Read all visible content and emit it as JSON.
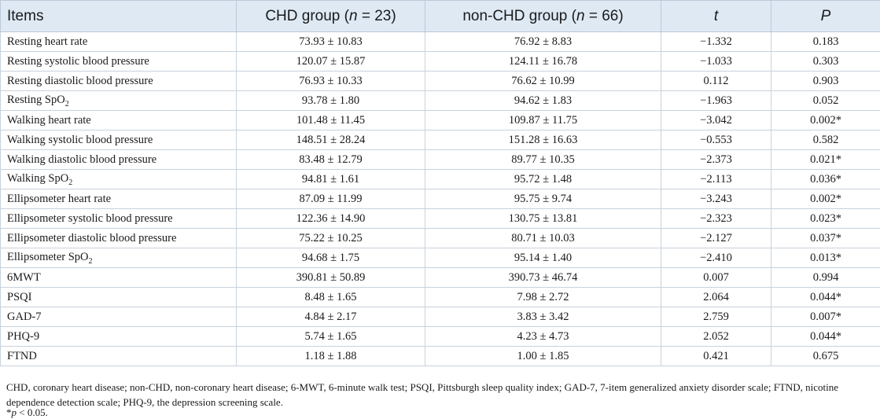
{
  "table": {
    "headers": {
      "items": "Items",
      "chd_prefix": "CHD group (",
      "chd_n": "n",
      "chd_suffix": " = 23)",
      "nonchd_prefix": "non-CHD group (",
      "nonchd_n": "n",
      "nonchd_suffix": " = 66)",
      "t": "t",
      "p": "P"
    },
    "rows": [
      {
        "item": "Resting heart rate",
        "chd": "73.93 ± 10.83",
        "nonchd": "76.92 ± 8.83",
        "t": "−1.332",
        "p": "0.183"
      },
      {
        "item": "Resting systolic blood pressure",
        "chd": "120.07 ± 15.87",
        "nonchd": "124.11 ± 16.78",
        "t": "−1.033",
        "p": "0.303"
      },
      {
        "item": "Resting diastolic blood pressure",
        "chd": "76.93 ± 10.33",
        "nonchd": "76.62 ± 10.99",
        "t": "0.112",
        "p": "0.903"
      },
      {
        "item": "Resting SpO",
        "sub": "2",
        "chd": "93.78 ± 1.80",
        "nonchd": "94.62 ± 1.83",
        "t": "−1.963",
        "p": "0.052"
      },
      {
        "item": "Walking heart rate",
        "chd": "101.48 ± 11.45",
        "nonchd": "109.87 ± 11.75",
        "t": "−3.042",
        "p": "0.002*"
      },
      {
        "item": "Walking systolic blood pressure",
        "chd": "148.51 ± 28.24",
        "nonchd": "151.28 ± 16.63",
        "t": "−0.553",
        "p": "0.582"
      },
      {
        "item": "Walking diastolic blood pressure",
        "chd": "83.48 ± 12.79",
        "nonchd": "89.77 ± 10.35",
        "t": "−2.373",
        "p": "0.021*"
      },
      {
        "item": "Walking SpO",
        "sub": "2",
        "chd": "94.81 ± 1.61",
        "nonchd": "95.72 ± 1.48",
        "t": "−2.113",
        "p": "0.036*"
      },
      {
        "item": "Ellipsometer heart rate",
        "chd": "87.09 ± 11.99",
        "nonchd": "95.75 ± 9.74",
        "t": "−3.243",
        "p": "0.002*"
      },
      {
        "item": "Ellipsometer systolic blood pressure",
        "chd": "122.36 ± 14.90",
        "nonchd": "130.75 ± 13.81",
        "t": "−2.323",
        "p": "0.023*"
      },
      {
        "item": "Ellipsometer diastolic blood pressure",
        "chd": "75.22 ± 10.25",
        "nonchd": "80.71 ± 10.03",
        "t": "−2.127",
        "p": "0.037*"
      },
      {
        "item": "Ellipsometer SpO",
        "sub": "2",
        "chd": "94.68 ± 1.75",
        "nonchd": "95.14 ± 1.40",
        "t": "−2.410",
        "p": "0.013*"
      },
      {
        "item": "6MWT",
        "chd": "390.81 ± 50.89",
        "nonchd": "390.73 ± 46.74",
        "t": "0.007",
        "p": "0.994"
      },
      {
        "item": "PSQI",
        "chd": "8.48 ± 1.65",
        "nonchd": "7.98 ± 2.72",
        "t": "2.064",
        "p": "0.044*"
      },
      {
        "item": "GAD-7",
        "chd": "4.84 ± 2.17",
        "nonchd": "3.83 ± 3.42",
        "t": "2.759",
        "p": "0.007*"
      },
      {
        "item": "PHQ-9",
        "chd": "5.74 ± 1.65",
        "nonchd": "4.23 ± 4.73",
        "t": "2.052",
        "p": "0.044*"
      },
      {
        "item": "FTND",
        "chd": "1.18 ± 1.88",
        "nonchd": "1.00 ± 1.85",
        "t": "0.421",
        "p": "0.675"
      }
    ]
  },
  "notes": {
    "abbreviations": "CHD, coronary heart disease; non-CHD, non-coronary heart disease; 6-MWT, 6-minute walk test; PSQI, Pittsburgh sleep quality index; GAD-7, 7-item generalized anxiety disorder scale; FTND, nicotine dependence detection scale; PHQ-9, the depression screening scale.",
    "sig_star": "*",
    "sig_p": "p",
    "sig_rest": " < 0.05."
  }
}
